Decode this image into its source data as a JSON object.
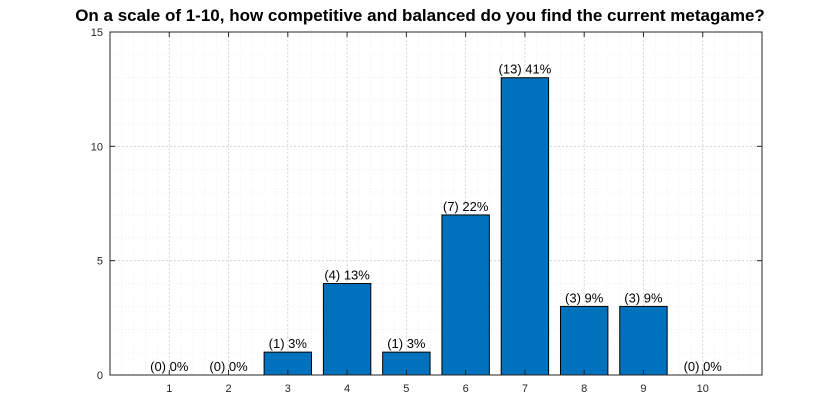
{
  "chart_data": {
    "type": "bar",
    "title": "On a scale of 1-10, how competitive and balanced do you find the current metagame?",
    "categories": [
      "1",
      "2",
      "3",
      "4",
      "5",
      "6",
      "7",
      "8",
      "9",
      "10"
    ],
    "values": [
      0,
      0,
      1,
      4,
      1,
      7,
      13,
      3,
      3,
      0
    ],
    "data_labels": [
      "(0) 0%",
      "(0) 0%",
      "(1) 3%",
      "(4) 13%",
      "(1) 3%",
      "(7) 22%",
      "(13) 41%",
      "(3) 9%",
      "(3) 9%",
      "(0) 0%"
    ],
    "xlim": [
      0,
      11
    ],
    "ylim": [
      0,
      15
    ],
    "yticks": [
      0,
      5,
      10,
      15
    ],
    "grid": true,
    "minor_grid": true,
    "bar_color": "#0072BD"
  }
}
